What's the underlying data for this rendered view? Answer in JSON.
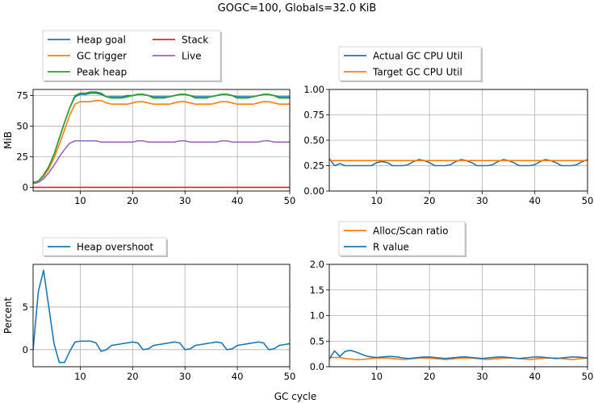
{
  "title": "GOGC=100, Globals=32.0 KiB",
  "shared_xlabel": "GC cycle",
  "colors": {
    "blue": "#1f77b4",
    "orange": "#ff7f0e",
    "green": "#2ca02c",
    "red": "#d62728",
    "purple": "#9467bd"
  },
  "chart_data": [
    {
      "type": "line",
      "ylabel": "MiB",
      "xlim": [
        1,
        50
      ],
      "ylim": [
        -3,
        80
      ],
      "xticks": [
        10,
        20,
        30,
        40,
        50
      ],
      "yticks": [
        0,
        25,
        50,
        75
      ],
      "grid": true,
      "legend_position": "above",
      "series": [
        {
          "name": "Heap goal",
          "color": "#1f77b4",
          "x": [
            1,
            2,
            3,
            4,
            5,
            6,
            7,
            8,
            9,
            10,
            11,
            12,
            13,
            14,
            15,
            16,
            17,
            18,
            19,
            20,
            21,
            22,
            23,
            24,
            25,
            26,
            27,
            28,
            29,
            30,
            31,
            32,
            33,
            34,
            35,
            36,
            37,
            38,
            39,
            40,
            41,
            42,
            43,
            44,
            45,
            46,
            47,
            48,
            49,
            50
          ],
          "y": [
            4,
            5,
            10,
            17,
            27,
            40,
            53,
            65,
            74,
            76,
            76,
            77,
            77,
            76,
            74,
            74,
            74,
            74,
            75,
            75,
            76,
            76,
            75,
            74,
            74,
            74,
            74,
            75,
            76,
            76,
            75,
            74,
            74,
            74,
            74,
            75,
            76,
            76,
            75,
            74,
            74,
            74,
            74,
            75,
            76,
            76,
            75,
            74,
            74,
            74
          ]
        },
        {
          "name": "GC trigger",
          "color": "#ff7f0e",
          "x": [
            1,
            2,
            3,
            4,
            5,
            6,
            7,
            8,
            9,
            10,
            11,
            12,
            13,
            14,
            15,
            16,
            17,
            18,
            19,
            20,
            21,
            22,
            23,
            24,
            25,
            26,
            27,
            28,
            29,
            30,
            31,
            32,
            33,
            34,
            35,
            36,
            37,
            38,
            39,
            40,
            41,
            42,
            43,
            44,
            45,
            46,
            47,
            48,
            49,
            50
          ],
          "y": [
            4,
            5,
            9,
            15,
            24,
            35,
            47,
            59,
            68,
            70,
            70,
            70,
            71,
            71,
            69,
            68,
            68,
            68,
            68,
            69,
            70,
            70,
            69,
            68,
            68,
            68,
            68,
            69,
            70,
            70,
            69,
            68,
            68,
            68,
            68,
            69,
            70,
            70,
            69,
            68,
            68,
            68,
            68,
            69,
            70,
            70,
            69,
            68,
            68,
            68
          ]
        },
        {
          "name": "Peak heap",
          "color": "#2ca02c",
          "x": [
            1,
            2,
            3,
            4,
            5,
            6,
            7,
            8,
            9,
            10,
            11,
            12,
            13,
            14,
            15,
            16,
            17,
            18,
            19,
            20,
            21,
            22,
            23,
            24,
            25,
            26,
            27,
            28,
            29,
            30,
            31,
            32,
            33,
            34,
            35,
            36,
            37,
            38,
            39,
            40,
            41,
            42,
            43,
            44,
            45,
            46,
            47,
            48,
            49,
            50
          ],
          "y": [
            4,
            5,
            10,
            17,
            27,
            40,
            53,
            65,
            75,
            77,
            77,
            78,
            78,
            77,
            74,
            73,
            73,
            73,
            74,
            75,
            76,
            76,
            75,
            73,
            73,
            73,
            74,
            75,
            76,
            76,
            75,
            73,
            73,
            73,
            74,
            75,
            76,
            76,
            75,
            73,
            73,
            73,
            74,
            75,
            76,
            76,
            75,
            73,
            73,
            73
          ]
        },
        {
          "name": "Stack",
          "color": "#d62728",
          "x": [
            1,
            50
          ],
          "y": [
            0,
            0
          ]
        },
        {
          "name": "Live",
          "color": "#9467bd",
          "x": [
            1,
            2,
            3,
            4,
            5,
            6,
            7,
            8,
            9,
            10,
            11,
            12,
            13,
            14,
            15,
            16,
            17,
            18,
            19,
            20,
            21,
            22,
            23,
            24,
            25,
            26,
            27,
            28,
            29,
            30,
            31,
            32,
            33,
            34,
            35,
            36,
            37,
            38,
            39,
            40,
            41,
            42,
            43,
            44,
            45,
            46,
            47,
            48,
            49,
            50
          ],
          "y": [
            3,
            4,
            7,
            12,
            18,
            25,
            31,
            36,
            38,
            38,
            38,
            38,
            38,
            37,
            37,
            37,
            37,
            37,
            37,
            37,
            38,
            38,
            37,
            37,
            37,
            37,
            37,
            37,
            38,
            38,
            37,
            37,
            37,
            37,
            37,
            37,
            38,
            38,
            37,
            37,
            37,
            37,
            37,
            37,
            38,
            38,
            37,
            37,
            37,
            37
          ]
        }
      ]
    },
    {
      "type": "line",
      "ylabel": "",
      "xlim": [
        1,
        50
      ],
      "ylim": [
        0,
        1
      ],
      "xticks": [
        10,
        20,
        30,
        40,
        50
      ],
      "yticks": [
        "0.00",
        "0.25",
        "0.50",
        "0.75",
        "1.00"
      ],
      "grid": true,
      "legend_position": "above",
      "series": [
        {
          "name": "Actual GC CPU Util",
          "color": "#1f77b4",
          "x": [
            1,
            2,
            3,
            4,
            5,
            6,
            7,
            8,
            9,
            10,
            11,
            12,
            13,
            14,
            15,
            16,
            17,
            18,
            19,
            20,
            21,
            22,
            23,
            24,
            25,
            26,
            27,
            28,
            29,
            30,
            31,
            32,
            33,
            34,
            35,
            36,
            37,
            38,
            39,
            40,
            41,
            42,
            43,
            44,
            45,
            46,
            47,
            48,
            49,
            50
          ],
          "y": [
            0.32,
            0.25,
            0.27,
            0.25,
            0.25,
            0.25,
            0.25,
            0.25,
            0.25,
            0.28,
            0.29,
            0.28,
            0.25,
            0.25,
            0.25,
            0.26,
            0.29,
            0.31,
            0.3,
            0.28,
            0.25,
            0.25,
            0.25,
            0.26,
            0.29,
            0.31,
            0.3,
            0.28,
            0.25,
            0.25,
            0.25,
            0.26,
            0.29,
            0.31,
            0.3,
            0.28,
            0.25,
            0.25,
            0.25,
            0.26,
            0.29,
            0.31,
            0.3,
            0.28,
            0.25,
            0.25,
            0.25,
            0.26,
            0.29,
            0.31
          ]
        },
        {
          "name": "Target GC CPU Util",
          "color": "#ff7f0e",
          "x": [
            1,
            50
          ],
          "y": [
            0.3,
            0.3
          ]
        }
      ]
    },
    {
      "type": "line",
      "ylabel": "Percent",
      "xlim": [
        1,
        50
      ],
      "ylim": [
        -2,
        10
      ],
      "xticks": [
        10,
        20,
        30,
        40,
        50
      ],
      "yticks": [
        0,
        5
      ],
      "grid": true,
      "legend_position": "above",
      "series": [
        {
          "name": "Heap overshoot",
          "color": "#1f77b4",
          "x": [
            1,
            2,
            3,
            4,
            5,
            6,
            7,
            8,
            9,
            10,
            11,
            12,
            13,
            14,
            15,
            16,
            17,
            18,
            19,
            20,
            21,
            22,
            23,
            24,
            25,
            26,
            27,
            28,
            29,
            30,
            31,
            32,
            33,
            34,
            35,
            36,
            37,
            38,
            39,
            40,
            41,
            42,
            43,
            44,
            45,
            46,
            47,
            48,
            49,
            50
          ],
          "y": [
            0,
            6.8,
            9.3,
            5,
            0.7,
            -1.5,
            -1.5,
            -0.2,
            0.9,
            1.0,
            1.0,
            1.0,
            0.8,
            -0.2,
            0.0,
            0.5,
            0.6,
            0.7,
            0.8,
            0.9,
            0.8,
            0.0,
            0.1,
            0.5,
            0.6,
            0.7,
            0.8,
            0.9,
            0.8,
            0.0,
            0.1,
            0.5,
            0.6,
            0.7,
            0.8,
            0.9,
            0.8,
            0.0,
            0.1,
            0.5,
            0.6,
            0.7,
            0.8,
            0.9,
            0.8,
            0.0,
            0.1,
            0.5,
            0.6,
            0.7
          ]
        }
      ]
    },
    {
      "type": "line",
      "ylabel": "",
      "xlim": [
        1,
        50
      ],
      "ylim": [
        0,
        2
      ],
      "xticks": [
        10,
        20,
        30,
        40,
        50
      ],
      "yticks": [
        "0.0",
        "0.5",
        "1.0",
        "1.5",
        "2.0"
      ],
      "grid": true,
      "legend_position": "above",
      "series": [
        {
          "name": "Alloc/Scan ratio",
          "color": "#ff7f0e",
          "x": [
            1,
            2,
            3,
            4,
            5,
            6,
            7,
            8,
            9,
            10,
            11,
            12,
            13,
            14,
            15,
            16,
            17,
            18,
            19,
            20,
            21,
            22,
            23,
            24,
            25,
            26,
            27,
            28,
            29,
            30,
            31,
            32,
            33,
            34,
            35,
            36,
            37,
            38,
            39,
            40,
            41,
            42,
            43,
            44,
            45,
            46,
            47,
            48,
            49,
            50
          ],
          "y": [
            0.18,
            0.18,
            0.18,
            0.16,
            0.15,
            0.14,
            0.14,
            0.15,
            0.16,
            0.17,
            0.17,
            0.17,
            0.16,
            0.15,
            0.14,
            0.15,
            0.16,
            0.17,
            0.17,
            0.17,
            0.16,
            0.15,
            0.14,
            0.15,
            0.16,
            0.17,
            0.17,
            0.17,
            0.16,
            0.15,
            0.14,
            0.15,
            0.16,
            0.17,
            0.17,
            0.17,
            0.16,
            0.15,
            0.14,
            0.15,
            0.16,
            0.17,
            0.17,
            0.17,
            0.16,
            0.15,
            0.14,
            0.15,
            0.16,
            0.17
          ]
        },
        {
          "name": "R value",
          "color": "#1f77b4",
          "x": [
            1,
            2,
            3,
            4,
            5,
            6,
            7,
            8,
            9,
            10,
            11,
            12,
            13,
            14,
            15,
            16,
            17,
            18,
            19,
            20,
            21,
            22,
            23,
            24,
            25,
            26,
            27,
            28,
            29,
            30,
            31,
            32,
            33,
            34,
            35,
            36,
            37,
            38,
            39,
            40,
            41,
            42,
            43,
            44,
            45,
            46,
            47,
            48,
            49,
            50
          ],
          "y": [
            0.15,
            0.31,
            0.2,
            0.3,
            0.32,
            0.29,
            0.25,
            0.21,
            0.19,
            0.18,
            0.19,
            0.2,
            0.2,
            0.19,
            0.17,
            0.16,
            0.17,
            0.18,
            0.19,
            0.19,
            0.18,
            0.17,
            0.16,
            0.17,
            0.18,
            0.19,
            0.19,
            0.18,
            0.17,
            0.16,
            0.17,
            0.18,
            0.19,
            0.19,
            0.18,
            0.17,
            0.16,
            0.17,
            0.18,
            0.19,
            0.19,
            0.18,
            0.17,
            0.16,
            0.17,
            0.18,
            0.19,
            0.19,
            0.18,
            0.17
          ]
        }
      ]
    }
  ]
}
